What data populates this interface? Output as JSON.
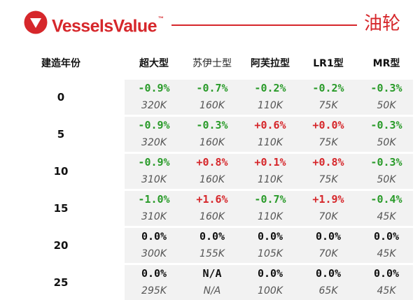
{
  "header": {
    "brand": "VesselsValue",
    "trademark": "™",
    "category": "油轮",
    "brand_color": "#d6272b",
    "logo_icon": "triangle-in-circle-logo"
  },
  "table": {
    "year_header": "建造年份",
    "columns": [
      "超大型",
      "苏伊士型",
      "阿芙拉型",
      "LR1型",
      "MR型"
    ],
    "colors": {
      "negative": "#2a9b2a",
      "positive": "#d6272b",
      "neutral": "#111111"
    },
    "rows": [
      {
        "age": "0",
        "changes": [
          "-0.9%",
          "-0.7%",
          "-0.2%",
          "-0.2%",
          "-0.3%"
        ],
        "tones": [
          "neg",
          "neg",
          "neg",
          "neg",
          "neg"
        ],
        "values": [
          "320K",
          "160K",
          "110K",
          "75K",
          "50K"
        ]
      },
      {
        "age": "5",
        "changes": [
          "-0.9%",
          "-0.3%",
          "+0.6%",
          "+0.0%",
          "-0.3%"
        ],
        "tones": [
          "neg",
          "neg",
          "pos",
          "pos",
          "neg"
        ],
        "values": [
          "320K",
          "160K",
          "110K",
          "75K",
          "50K"
        ]
      },
      {
        "age": "10",
        "changes": [
          "-0.9%",
          "+0.8%",
          "+0.1%",
          "+0.8%",
          "-0.3%"
        ],
        "tones": [
          "neg",
          "pos",
          "pos",
          "pos",
          "neg"
        ],
        "values": [
          "310K",
          "160K",
          "110K",
          "75K",
          "50K"
        ]
      },
      {
        "age": "15",
        "changes": [
          "-1.0%",
          "+1.6%",
          "-0.7%",
          "+1.9%",
          "-0.4%"
        ],
        "tones": [
          "neg",
          "pos",
          "neg",
          "pos",
          "neg"
        ],
        "values": [
          "310K",
          "160K",
          "110K",
          "70K",
          "45K"
        ]
      },
      {
        "age": "20",
        "changes": [
          "0.0%",
          "0.0%",
          "0.0%",
          "0.0%",
          "0.0%"
        ],
        "tones": [
          "neu",
          "neu",
          "neu",
          "neu",
          "neu"
        ],
        "values": [
          "300K",
          "155K",
          "105K",
          "70K",
          "45K"
        ]
      },
      {
        "age": "25",
        "changes": [
          "0.0%",
          "N/A",
          "0.0%",
          "0.0%",
          "0.0%"
        ],
        "tones": [
          "neu",
          "neu",
          "neu",
          "neu",
          "neu"
        ],
        "values": [
          "295K",
          "N/A",
          "100K",
          "65K",
          "45K"
        ]
      }
    ]
  }
}
